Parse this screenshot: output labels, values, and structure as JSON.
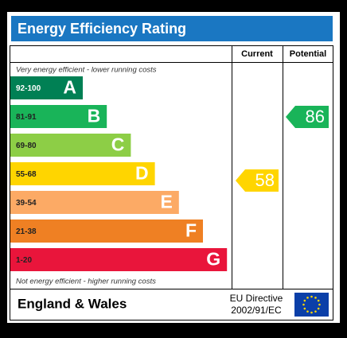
{
  "title": "Energy Efficiency Rating",
  "columns": {
    "current": "Current",
    "potential": "Potential"
  },
  "top_note": "Very energy efficient - lower running costs",
  "bottom_note": "Not energy efficient - higher running costs",
  "bands": [
    {
      "range": "92-100",
      "letter": "A",
      "color": "#008054"
    },
    {
      "range": "81-91",
      "letter": "B",
      "color": "#19b459"
    },
    {
      "range": "69-80",
      "letter": "C",
      "color": "#8dce46"
    },
    {
      "range": "55-68",
      "letter": "D",
      "color": "#ffd500"
    },
    {
      "range": "39-54",
      "letter": "E",
      "color": "#fcaa65"
    },
    {
      "range": "21-38",
      "letter": "F",
      "color": "#ef8023"
    },
    {
      "range": "1-20",
      "letter": "G",
      "color": "#e9153b"
    }
  ],
  "current": {
    "value": 58
  },
  "potential": {
    "value": 86
  },
  "footer": {
    "region": "England & Wales",
    "directive_line1": "EU Directive",
    "directive_line2": "2002/91/EC"
  }
}
